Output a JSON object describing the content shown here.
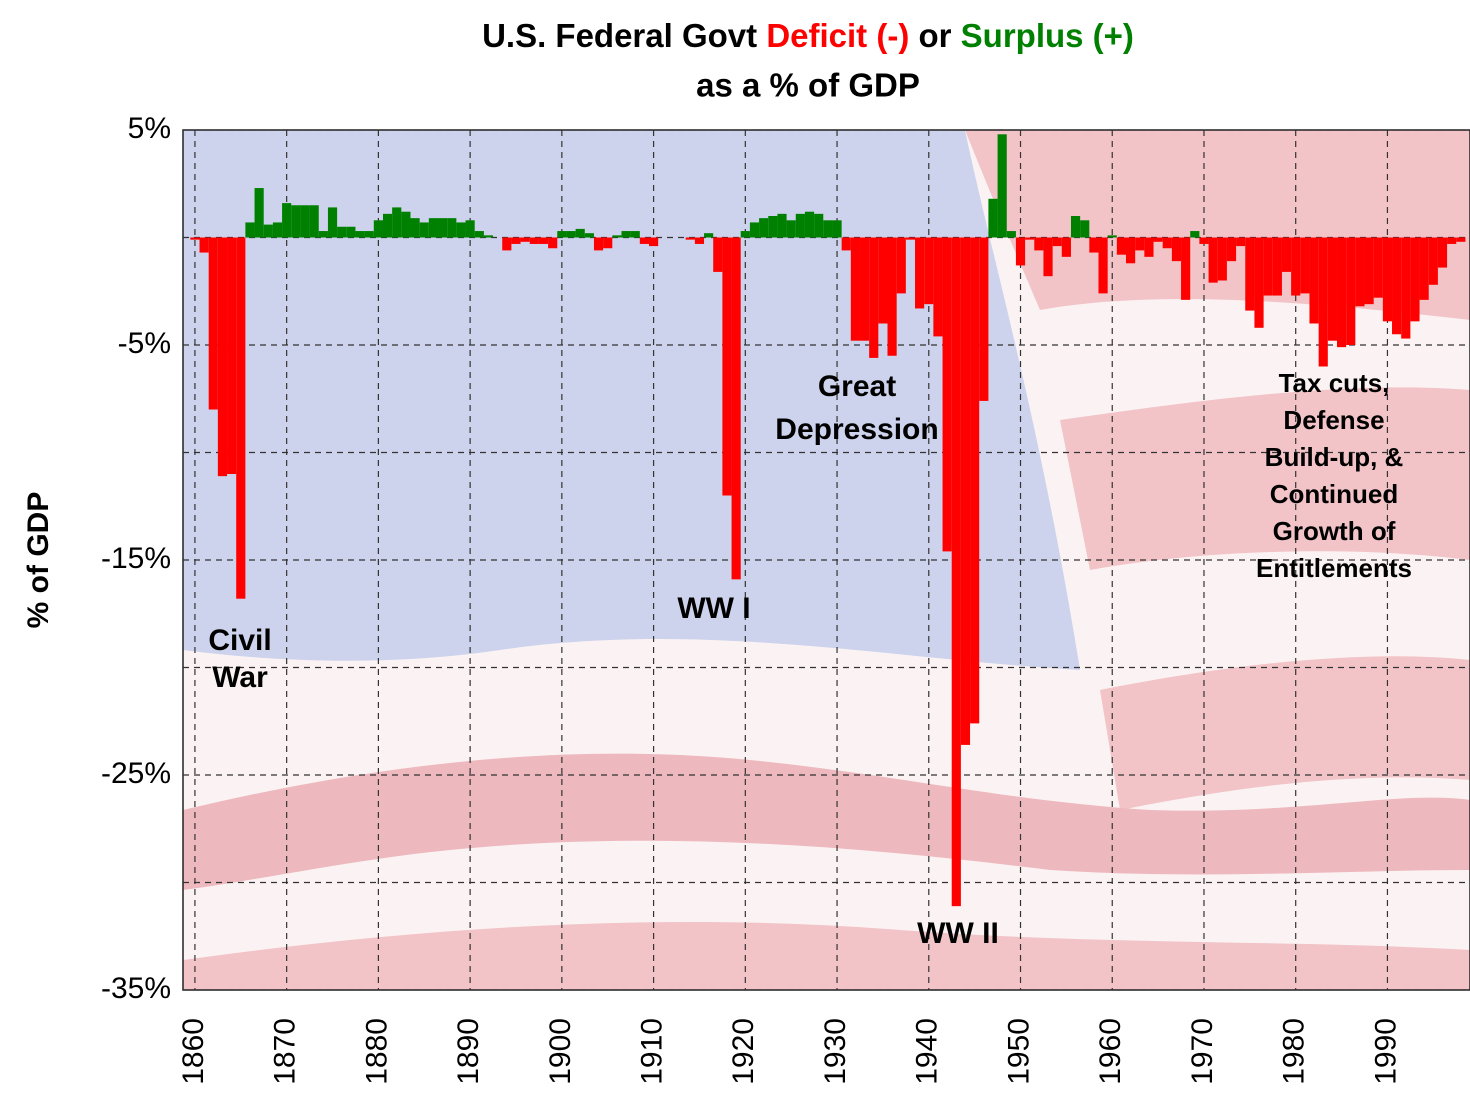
{
  "chart_data": {
    "type": "bar",
    "title_line1": [
      "U.S. Federal Govt",
      "Deficit (-)",
      "or",
      "Surplus (+)"
    ],
    "title_line2": "as a % of GDP",
    "y_label": "% of GDP",
    "x": [
      1860,
      1861,
      1862,
      1863,
      1864,
      1865,
      1866,
      1867,
      1868,
      1869,
      1870,
      1871,
      1872,
      1873,
      1874,
      1875,
      1876,
      1877,
      1878,
      1879,
      1880,
      1881,
      1882,
      1883,
      1884,
      1885,
      1886,
      1887,
      1888,
      1889,
      1890,
      1891,
      1892,
      1893,
      1894,
      1895,
      1896,
      1897,
      1898,
      1899,
      1900,
      1901,
      1902,
      1903,
      1904,
      1905,
      1906,
      1907,
      1908,
      1909,
      1910,
      1911,
      1912,
      1913,
      1914,
      1915,
      1916,
      1917,
      1918,
      1919,
      1920,
      1921,
      1922,
      1923,
      1924,
      1925,
      1926,
      1927,
      1928,
      1929,
      1930,
      1931,
      1932,
      1933,
      1934,
      1935,
      1936,
      1937,
      1938,
      1939,
      1940,
      1941,
      1942,
      1943,
      1944,
      1945,
      1946,
      1947,
      1948,
      1949,
      1950,
      1951,
      1952,
      1953,
      1954,
      1955,
      1956,
      1957,
      1958,
      1959,
      1960,
      1961,
      1962,
      1963,
      1964,
      1965,
      1966,
      1967,
      1968,
      1969,
      1970,
      1971,
      1972,
      1973,
      1974,
      1975,
      1976,
      1977,
      1978,
      1979,
      1980,
      1981,
      1982,
      1983,
      1984,
      1985,
      1986,
      1987,
      1988,
      1989,
      1990,
      1991,
      1992,
      1993,
      1994,
      1995,
      1996,
      1997,
      1998
    ],
    "values": [
      -0.1,
      -0.7,
      -8.0,
      -11.1,
      -11.0,
      -16.8,
      0.7,
      2.3,
      0.6,
      0.7,
      1.6,
      1.5,
      1.5,
      1.5,
      0.3,
      1.4,
      0.5,
      0.5,
      0.3,
      0.3,
      0.8,
      1.1,
      1.4,
      1.2,
      0.9,
      0.7,
      0.9,
      0.9,
      0.9,
      0.7,
      0.8,
      0.3,
      0.1,
      0.0,
      -0.6,
      -0.3,
      -0.2,
      -0.3,
      -0.3,
      -0.5,
      0.3,
      0.3,
      0.4,
      0.2,
      -0.6,
      -0.5,
      0.1,
      0.3,
      0.3,
      -0.3,
      -0.4,
      0.0,
      0.0,
      0.0,
      -0.1,
      -0.3,
      0.2,
      -1.6,
      -12.0,
      -15.9,
      0.3,
      0.7,
      0.9,
      1.0,
      1.1,
      0.8,
      1.1,
      1.2,
      1.1,
      0.8,
      0.8,
      -0.6,
      -4.8,
      -4.8,
      -5.6,
      -4.0,
      -5.5,
      -2.6,
      -0.1,
      -3.3,
      -3.1,
      -4.6,
      -14.6,
      -31.1,
      -23.6,
      -22.6,
      -7.6,
      1.8,
      4.8,
      0.3,
      -1.3,
      -0.1,
      -0.6,
      -1.8,
      -0.4,
      -0.9,
      1.0,
      0.8,
      -0.7,
      -2.6,
      0.1,
      -0.8,
      -1.2,
      -0.6,
      -0.9,
      -0.2,
      -0.5,
      -1.1,
      -2.9,
      0.3,
      -0.3,
      -2.1,
      -2.0,
      -1.1,
      -0.4,
      -3.4,
      -4.2,
      -2.7,
      -2.7,
      -1.6,
      -2.7,
      -2.6,
      -4.0,
      -6.0,
      -4.8,
      -5.1,
      -5.0,
      -3.2,
      -3.1,
      -2.8,
      -3.9,
      -4.5,
      -4.7,
      -3.9,
      -2.9,
      -2.2,
      -1.4,
      -0.3,
      -0.2
    ],
    "positive_color": "#008000",
    "negative_color": "#ff0000",
    "xlim": [
      1858.7,
      1999
    ],
    "xticks": [
      1860,
      1870,
      1880,
      1890,
      1900,
      1910,
      1920,
      1930,
      1940,
      1950,
      1960,
      1970,
      1980,
      1990
    ],
    "ylim": [
      -35,
      5
    ],
    "yticks": [
      {
        "value": 5,
        "label": "5%"
      },
      {
        "value": -5,
        "label": "-5%"
      },
      {
        "value": -15,
        "label": "-15%"
      },
      {
        "value": -25,
        "label": "-25%"
      },
      {
        "value": -35,
        "label": "-35%"
      }
    ],
    "minor_yticks": [
      0,
      -10,
      -20,
      -30
    ],
    "grid": true,
    "annotations": [
      {
        "lines": [
          "Civil",
          "War"
        ]
      },
      {
        "lines": [
          "WW I"
        ]
      },
      {
        "lines": [
          "Great",
          "Depression"
        ]
      },
      {
        "lines": [
          "WW II"
        ]
      },
      {
        "lines": [
          "Tax cuts,",
          "Defense",
          "Build-up, &",
          "Continued",
          "Growth of",
          "Entitlements"
        ]
      }
    ]
  }
}
